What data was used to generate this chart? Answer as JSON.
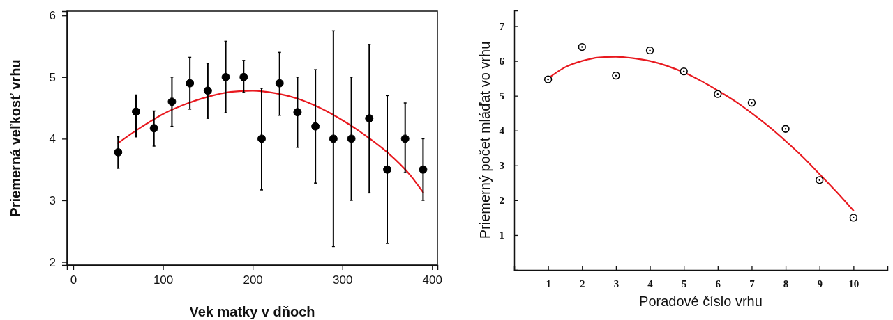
{
  "chart_data": [
    {
      "type": "scatter",
      "xlabel": "Vek matky v dňoch",
      "ylabel": "Priemerná veľkosť vrhu",
      "xlim": [
        -7,
        406
      ],
      "ylim": [
        1.95,
        6.07
      ],
      "xticks": [
        0,
        100,
        200,
        300,
        400
      ],
      "yticks": [
        2,
        3,
        4,
        5,
        6
      ],
      "series": [
        {
          "marker": "circle",
          "color": "#000000",
          "x": [
            50,
            70,
            90,
            110,
            130,
            150,
            170,
            190,
            210,
            230,
            250,
            270,
            290,
            310,
            330,
            350,
            370,
            390
          ],
          "values": [
            3.78,
            4.44,
            4.17,
            4.6,
            4.9,
            4.78,
            5.0,
            5.0,
            4.0,
            4.9,
            4.43,
            4.2,
            4.0,
            4.0,
            4.33,
            3.5,
            4.0,
            3.5
          ],
          "errors": [
            [
              3.52,
              4.03
            ],
            [
              4.03,
              4.71
            ],
            [
              3.88,
              4.45
            ],
            [
              4.2,
              5.0
            ],
            [
              4.48,
              5.32
            ],
            [
              4.33,
              5.22
            ],
            [
              4.42,
              5.58
            ],
            [
              4.75,
              5.27
            ],
            [
              3.17,
              4.82
            ],
            [
              4.38,
              5.4
            ],
            [
              3.86,
              5.0
            ],
            [
              3.28,
              5.12
            ],
            [
              2.25,
              5.75
            ],
            [
              3.0,
              5.0
            ],
            [
              3.12,
              5.53
            ],
            [
              2.3,
              4.7
            ],
            [
              3.45,
              4.58
            ],
            [
              3.0,
              4.0
            ]
          ]
        },
        {
          "type": "line",
          "color": "#e8191f",
          "x": [
            50,
            75,
            100,
            125,
            150,
            175,
            200,
            225,
            250,
            275,
            300,
            325,
            350,
            375,
            390
          ],
          "values": [
            3.93,
            4.18,
            4.4,
            4.56,
            4.68,
            4.76,
            4.78,
            4.74,
            4.65,
            4.5,
            4.3,
            4.06,
            3.78,
            3.42,
            3.13
          ]
        }
      ]
    },
    {
      "type": "scatter",
      "xlabel": "Poradové číslo vrhu",
      "ylabel": "Priemerný počet mláďat vo vrhu",
      "xlim": [
        0,
        11
      ],
      "ylim": [
        0,
        7.45
      ],
      "xticks": [
        1,
        2,
        3,
        4,
        5,
        6,
        7,
        8,
        9,
        10
      ],
      "yticks": [
        1,
        2,
        3,
        4,
        5,
        6,
        7
      ],
      "series": [
        {
          "marker": "circle",
          "color": "#000000",
          "x": [
            1,
            2,
            3,
            4,
            5,
            6,
            7,
            8,
            9,
            10
          ],
          "values": [
            5.47,
            6.4,
            5.58,
            6.3,
            5.7,
            5.05,
            4.8,
            4.05,
            2.58,
            1.5
          ]
        },
        {
          "type": "line",
          "color": "#e8191f",
          "x": [
            1,
            1.5,
            2,
            2.5,
            3,
            3.5,
            4,
            4.5,
            5,
            5.5,
            6,
            6.5,
            7,
            7.5,
            8,
            8.5,
            9,
            9.5,
            10
          ],
          "values": [
            5.5,
            5.82,
            6.0,
            6.1,
            6.12,
            6.08,
            6.0,
            5.86,
            5.67,
            5.43,
            5.15,
            4.85,
            4.5,
            4.12,
            3.7,
            3.25,
            2.75,
            2.24,
            1.7
          ]
        }
      ]
    }
  ]
}
